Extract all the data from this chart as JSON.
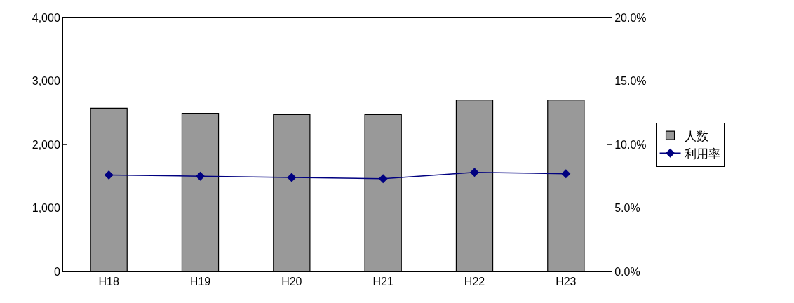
{
  "chart_data": {
    "type": "bar",
    "categories": [
      "H18",
      "H19",
      "H20",
      "H21",
      "H22",
      "H23"
    ],
    "series": [
      {
        "name": "人数",
        "color": "#999999",
        "values": [
          2570,
          2490,
          2470,
          2470,
          2700,
          2700
        ]
      },
      {
        "name": "利用率",
        "type": "line",
        "axis": "y2",
        "color": "#000080",
        "marker": "diamond",
        "values": [
          7.6,
          7.5,
          7.4,
          7.3,
          7.8,
          7.7
        ]
      }
    ],
    "ylim": [
      0,
      4000
    ],
    "yticks": [
      {
        "value": 0,
        "label": "0"
      },
      {
        "value": 1000,
        "label": "1,000"
      },
      {
        "value": 2000,
        "label": "2,000"
      },
      {
        "value": 3000,
        "label": "3,000"
      },
      {
        "value": 4000,
        "label": "4,000"
      }
    ],
    "y2lim": [
      0,
      20
    ],
    "y2ticks": [
      {
        "value": 0,
        "label": "0.0%"
      },
      {
        "value": 5,
        "label": "5.0%"
      },
      {
        "value": 10,
        "label": "10.0%"
      },
      {
        "value": 15,
        "label": "15.0%"
      },
      {
        "value": 20,
        "label": "20.0%"
      }
    ],
    "grid": false,
    "legend": "right"
  }
}
